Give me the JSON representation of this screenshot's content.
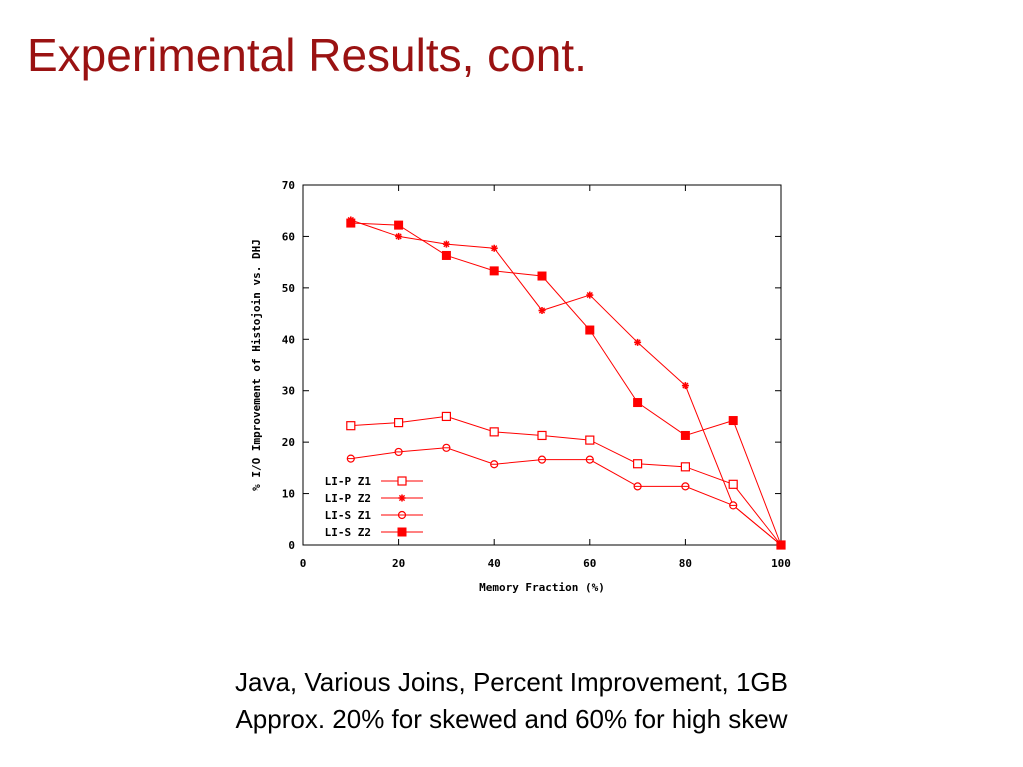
{
  "slide": {
    "title": "Experimental Results, cont.",
    "caption_line_1": "Java, Various Joins, Percent Improvement, 1GB",
    "caption_line_2": "Approx. 20% for skewed and 60% for high skew"
  },
  "chart_data": {
    "type": "line",
    "xlabel": "Memory Fraction (%)",
    "ylabel": "% I/O Improvement of Histojoin vs. DHJ",
    "xlim": [
      0,
      100
    ],
    "ylim": [
      0,
      70
    ],
    "xticks": [
      0,
      20,
      40,
      60,
      80,
      100
    ],
    "yticks": [
      0,
      10,
      20,
      30,
      40,
      50,
      60,
      70
    ],
    "grid": false,
    "legend_position": "bottom-left",
    "color": "#ff0000",
    "series": [
      {
        "name": "LI-P Z1",
        "marker": "open-square",
        "x": [
          10,
          20,
          30,
          40,
          50,
          60,
          70,
          80,
          90,
          100
        ],
        "y": [
          23.2,
          23.8,
          25.0,
          22.0,
          21.3,
          20.4,
          15.8,
          15.2,
          11.8,
          0
        ]
      },
      {
        "name": "LI-P Z2",
        "marker": "star",
        "x": [
          10,
          20,
          30,
          40,
          50,
          60,
          70,
          80,
          90,
          100
        ],
        "y": [
          63.2,
          60.0,
          58.5,
          57.7,
          45.6,
          48.6,
          39.4,
          31.0,
          7.7,
          0
        ]
      },
      {
        "name": "LI-S Z1",
        "marker": "open-circle",
        "x": [
          10,
          20,
          30,
          40,
          50,
          60,
          70,
          80,
          90,
          100
        ],
        "y": [
          16.8,
          18.1,
          18.9,
          15.7,
          16.6,
          16.6,
          11.4,
          11.4,
          7.7,
          0
        ]
      },
      {
        "name": "LI-S Z2",
        "marker": "filled-square",
        "x": [
          10,
          20,
          30,
          40,
          50,
          60,
          70,
          80,
          90,
          100
        ],
        "y": [
          62.6,
          62.2,
          56.3,
          53.3,
          52.3,
          41.8,
          27.7,
          21.3,
          24.2,
          0
        ]
      }
    ]
  }
}
